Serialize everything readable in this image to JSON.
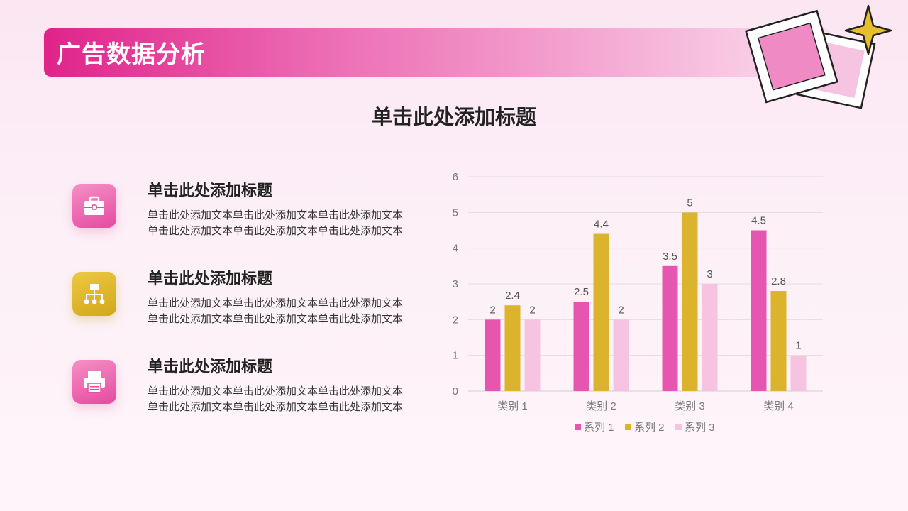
{
  "header": {
    "title": "广告数据分析"
  },
  "main": {
    "title": "单击此处添加标题"
  },
  "items": [
    {
      "title": "单击此处添加标题",
      "body": "单击此处添加文本单击此处添加文本单击此处添加文本单击此处添加文本单击此处添加文本单击此处添加文本",
      "icon": "toolbox-icon",
      "color": "#e54aa0"
    },
    {
      "title": "单击此处添加标题",
      "body": "单击此处添加文本单击此处添加文本单击此处添加文本单击此处添加文本单击此处添加文本单击此处添加文本",
      "icon": "org-chart-icon",
      "color": "#d2a818"
    },
    {
      "title": "单击此处添加标题",
      "body": "单击此处添加文本单击此处添加文本单击此处添加文本单击此处添加文本单击此处添加文本单击此处添加文本",
      "icon": "printer-icon",
      "color": "#e54aa0"
    }
  ],
  "chart_data": {
    "type": "bar",
    "categories": [
      "类别 1",
      "类别 2",
      "类别 3",
      "类别 4"
    ],
    "series": [
      {
        "name": "系列 1",
        "values": [
          2,
          2.5,
          3.5,
          4.5
        ],
        "color": "#e656b0"
      },
      {
        "name": "系列 2",
        "values": [
          2.4,
          4.4,
          5,
          2.8
        ],
        "color": "#dcb32c"
      },
      {
        "name": "系列 3",
        "values": [
          2,
          2,
          3,
          1
        ],
        "color": "#f6c4e0"
      }
    ],
    "ylim": [
      0,
      6
    ],
    "yticks": [
      0,
      1,
      2,
      3,
      4,
      5,
      6
    ],
    "grid": true,
    "legend": "bottom",
    "data_labels": true
  }
}
